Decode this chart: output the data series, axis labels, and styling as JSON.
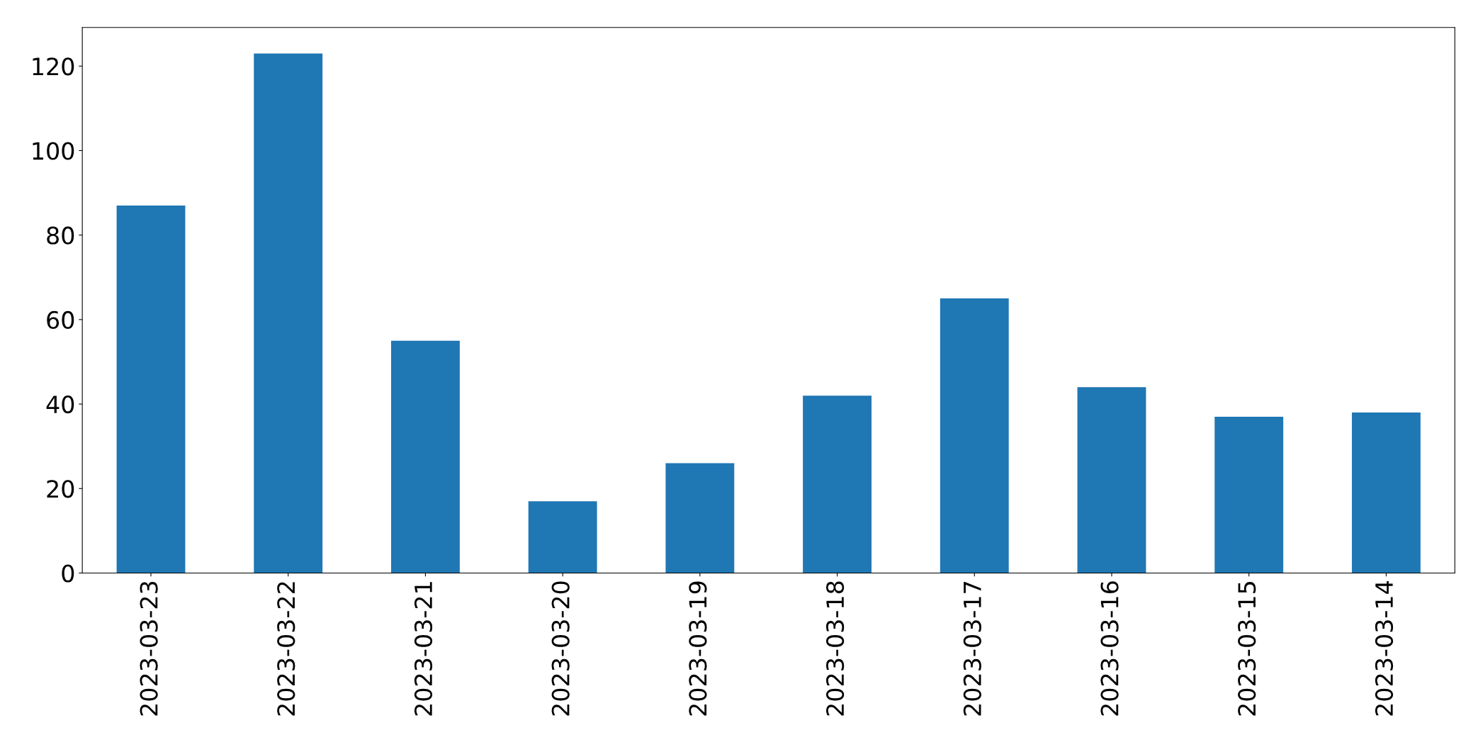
{
  "chart_data": {
    "type": "bar",
    "categories": [
      "2023-03-23",
      "2023-03-22",
      "2023-03-21",
      "2023-03-20",
      "2023-03-19",
      "2023-03-18",
      "2023-03-17",
      "2023-03-16",
      "2023-03-15",
      "2023-03-14"
    ],
    "values": [
      87,
      123,
      55,
      17,
      26,
      42,
      65,
      44,
      37,
      38
    ],
    "color": "#1f77b4",
    "ylim": [
      0,
      129.15
    ],
    "yticks": [
      0,
      20,
      40,
      60,
      80,
      100,
      120
    ],
    "grid": false
  }
}
